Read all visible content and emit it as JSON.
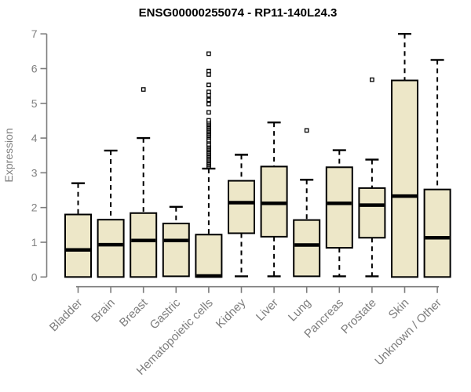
{
  "chart_data": {
    "type": "boxplot",
    "title": "ENSG00000255074 - RP11-140L24.3",
    "xlabel": "",
    "ylabel": "Expression",
    "ylim": [
      0,
      7
    ],
    "yticks": [
      0,
      1,
      2,
      3,
      4,
      5,
      6,
      7
    ],
    "grid": "off",
    "legend": "none",
    "categories": [
      "Bladder",
      "Brain",
      "Breast",
      "Gastric",
      "Hematopoietic cells",
      "Kidney",
      "Liver",
      "Lung",
      "Pancreas",
      "Prostate",
      "Skin",
      "Unknown / Other"
    ],
    "series": [
      {
        "name": "Bladder",
        "whisker_low": 0,
        "q1": 0,
        "median": 0.78,
        "q3": 1.8,
        "whisker_high": 2.7,
        "outliers": []
      },
      {
        "name": "Brain",
        "whisker_low": 0,
        "q1": 0,
        "median": 0.93,
        "q3": 1.65,
        "whisker_high": 3.64,
        "outliers": []
      },
      {
        "name": "Breast",
        "whisker_low": 0,
        "q1": 0,
        "median": 1.05,
        "q3": 1.84,
        "whisker_high": 4.0,
        "outliers": [
          5.4
        ]
      },
      {
        "name": "Gastric",
        "whisker_low": 0.02,
        "q1": 0.02,
        "median": 1.05,
        "q3": 1.54,
        "whisker_high": 2.02,
        "outliers": []
      },
      {
        "name": "Hematopoietic cells",
        "whisker_low": 0,
        "q1": 0,
        "median": 0.03,
        "q3": 1.22,
        "whisker_high": 3.12,
        "outliers": [
          3.18,
          3.22,
          3.26,
          3.3,
          3.34,
          3.38,
          3.42,
          3.46,
          3.5,
          3.54,
          3.58,
          3.62,
          3.66,
          3.7,
          3.74,
          3.78,
          3.82,
          3.9,
          3.94,
          4.02,
          4.06,
          4.1,
          4.14,
          4.18,
          4.22,
          4.26,
          4.3,
          4.34,
          4.38,
          4.42,
          4.46,
          4.51,
          4.74,
          4.98,
          5.1,
          5.23,
          5.33,
          5.53,
          5.83,
          5.93,
          6.43
        ]
      },
      {
        "name": "Kidney",
        "whisker_low": 0.02,
        "q1": 1.26,
        "median": 2.14,
        "q3": 2.77,
        "whisker_high": 3.52,
        "outliers": []
      },
      {
        "name": "Liver",
        "whisker_low": 0.02,
        "q1": 1.16,
        "median": 2.12,
        "q3": 3.18,
        "whisker_high": 4.45,
        "outliers": []
      },
      {
        "name": "Lung",
        "whisker_low": 0.02,
        "q1": 0.02,
        "median": 0.92,
        "q3": 1.64,
        "whisker_high": 2.8,
        "outliers": [
          4.22
        ]
      },
      {
        "name": "Pancreas",
        "whisker_low": 0.02,
        "q1": 0.84,
        "median": 2.12,
        "q3": 3.16,
        "whisker_high": 3.65,
        "outliers": []
      },
      {
        "name": "Prostate",
        "whisker_low": 0.02,
        "q1": 1.13,
        "median": 2.07,
        "q3": 2.56,
        "whisker_high": 3.38,
        "outliers": [
          5.68
        ]
      },
      {
        "name": "Skin",
        "whisker_low": 0,
        "q1": 0,
        "median": 2.33,
        "q3": 5.66,
        "whisker_high": 7.0,
        "outliers": []
      },
      {
        "name": "Unknown / Other",
        "whisker_low": 0,
        "q1": 0,
        "median": 1.13,
        "q3": 2.52,
        "whisker_high": 6.25,
        "outliers": []
      }
    ],
    "colors": {
      "box_fill": "#ede7c8",
      "box_border": "#000000",
      "median": "#000000",
      "whisker": "#000000",
      "axis": "#7d7d7d",
      "tick_label": "#808080",
      "title": "#000000",
      "background": "#ffffff"
    }
  }
}
